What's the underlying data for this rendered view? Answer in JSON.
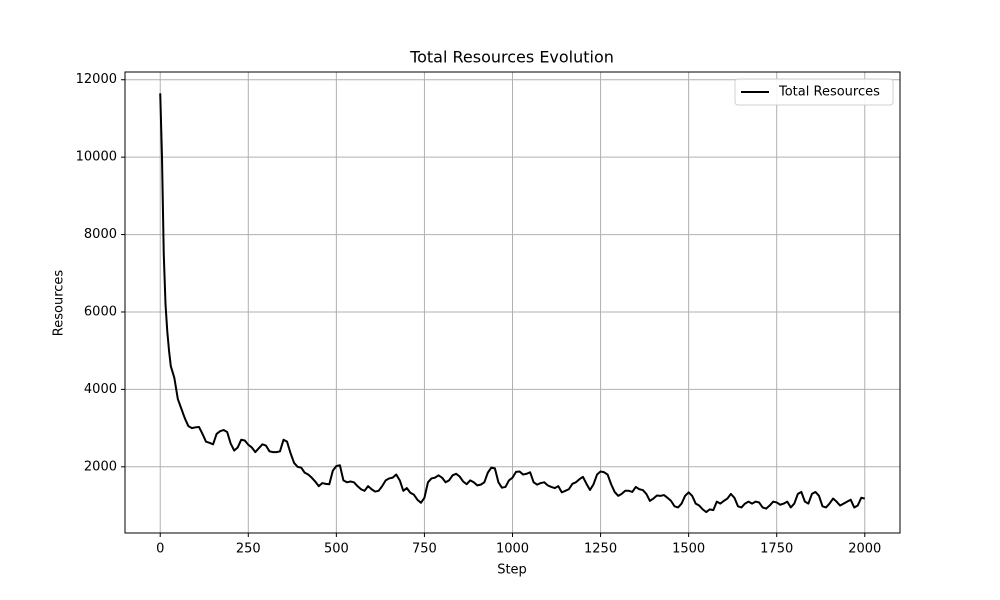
{
  "chart_data": {
    "type": "line",
    "title": "Total Resources Evolution",
    "x_label": "Step",
    "y_label": "Resources",
    "x": [
      0,
      5,
      10,
      15,
      20,
      25,
      30,
      40,
      50,
      60,
      70,
      80,
      90,
      100,
      110,
      120,
      130,
      140,
      150,
      160,
      170,
      180,
      190,
      200,
      210,
      220,
      230,
      240,
      250,
      260,
      270,
      280,
      290,
      300,
      310,
      320,
      330,
      340,
      350,
      360,
      370,
      380,
      390,
      400,
      410,
      420,
      430,
      440,
      450,
      460,
      470,
      480,
      490,
      500,
      510,
      520,
      530,
      540,
      550,
      560,
      570,
      580,
      590,
      600,
      610,
      620,
      630,
      640,
      650,
      660,
      670,
      680,
      690,
      700,
      710,
      720,
      730,
      740,
      750,
      760,
      770,
      780,
      790,
      800,
      810,
      820,
      830,
      840,
      850,
      860,
      870,
      880,
      890,
      900,
      910,
      920,
      930,
      940,
      950,
      960,
      970,
      980,
      990,
      1000,
      1010,
      1020,
      1030,
      1040,
      1050,
      1060,
      1070,
      1080,
      1090,
      1100,
      1110,
      1120,
      1130,
      1140,
      1150,
      1160,
      1170,
      1180,
      1190,
      1200,
      1210,
      1220,
      1230,
      1240,
      1250,
      1260,
      1270,
      1280,
      1290,
      1300,
      1310,
      1320,
      1330,
      1340,
      1350,
      1360,
      1370,
      1380,
      1390,
      1400,
      1410,
      1420,
      1430,
      1440,
      1450,
      1460,
      1470,
      1480,
      1490,
      1500,
      1510,
      1520,
      1530,
      1540,
      1550,
      1560,
      1570,
      1580,
      1590,
      1600,
      1610,
      1620,
      1630,
      1640,
      1650,
      1660,
      1670,
      1680,
      1690,
      1700,
      1710,
      1720,
      1730,
      1740,
      1750,
      1760,
      1770,
      1780,
      1790,
      1800,
      1810,
      1820,
      1830,
      1840,
      1850,
      1860,
      1870,
      1880,
      1890,
      1900,
      1910,
      1920,
      1930,
      1940,
      1950,
      1960,
      1970,
      1980,
      1990,
      2000
    ],
    "series": [
      {
        "name": "Total Resources",
        "color": "#000000",
        "values": [
          11650,
          10000,
          7500,
          6200,
          5500,
          5000,
          4600,
          4300,
          3750,
          3500,
          3250,
          3050,
          3000,
          3020,
          3030,
          2850,
          2650,
          2620,
          2580,
          2850,
          2920,
          2950,
          2900,
          2600,
          2420,
          2500,
          2700,
          2680,
          2570,
          2500,
          2380,
          2480,
          2580,
          2550,
          2400,
          2380,
          2380,
          2400,
          2700,
          2650,
          2350,
          2100,
          2000,
          1980,
          1850,
          1800,
          1720,
          1620,
          1500,
          1580,
          1560,
          1550,
          1900,
          2020,
          2040,
          1650,
          1600,
          1620,
          1600,
          1500,
          1420,
          1380,
          1500,
          1420,
          1360,
          1380,
          1500,
          1650,
          1700,
          1720,
          1800,
          1650,
          1380,
          1450,
          1330,
          1280,
          1150,
          1070,
          1200,
          1600,
          1700,
          1720,
          1780,
          1720,
          1600,
          1650,
          1780,
          1820,
          1750,
          1620,
          1550,
          1650,
          1600,
          1520,
          1540,
          1600,
          1850,
          1980,
          1960,
          1600,
          1460,
          1480,
          1650,
          1720,
          1870,
          1880,
          1800,
          1820,
          1860,
          1600,
          1540,
          1580,
          1600,
          1520,
          1480,
          1450,
          1500,
          1340,
          1380,
          1420,
          1560,
          1600,
          1680,
          1740,
          1560,
          1400,
          1550,
          1800,
          1880,
          1860,
          1800,
          1550,
          1350,
          1250,
          1300,
          1380,
          1380,
          1350,
          1480,
          1420,
          1400,
          1300,
          1120,
          1180,
          1260,
          1250,
          1270,
          1200,
          1120,
          980,
          950,
          1050,
          1250,
          1340,
          1250,
          1050,
          1000,
          900,
          830,
          900,
          880,
          1100,
          1050,
          1120,
          1180,
          1300,
          1200,
          980,
          950,
          1050,
          1100,
          1050,
          1100,
          1080,
          950,
          920,
          1000,
          1100,
          1080,
          1020,
          1050,
          1100,
          950,
          1050,
          1300,
          1350,
          1100,
          1050,
          1300,
          1350,
          1250,
          980,
          950,
          1050,
          1180,
          1100,
          1000,
          1050,
          1100,
          1150,
          950,
          1000,
          1200,
          1180
        ]
      }
    ],
    "xlim": [
      -100,
      2100
    ],
    "ylim": [
      290,
      12200
    ],
    "xticks": [
      0,
      250,
      500,
      750,
      1000,
      1250,
      1500,
      1750,
      2000
    ],
    "yticks": [
      2000,
      4000,
      6000,
      8000,
      10000,
      12000
    ],
    "grid": true,
    "legend": "upper right"
  }
}
